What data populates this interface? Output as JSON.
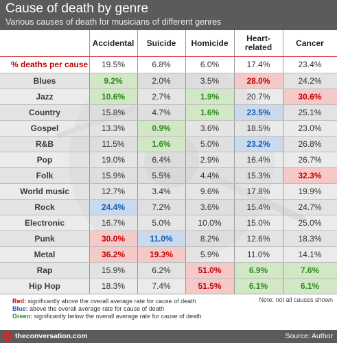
{
  "header": {
    "title": "Cause of death by genre",
    "subtitle": "Various causes of death for musicians of different genres"
  },
  "chart_data": {
    "type": "table",
    "title": "Cause of death by genre",
    "subtitle": "Various causes of death for musicians of different genres",
    "columns": [
      "Accidental",
      "Suicide",
      "Homicide",
      "Heart-\nrelated",
      "Cancer"
    ],
    "overall": {
      "label": "% deaths per cause",
      "values": [
        "19.5%",
        "6.8%",
        "6.0%",
        "17.4%",
        "23.4%"
      ]
    },
    "rows": [
      {
        "genre": "Blues",
        "values": [
          "9.2%",
          "2.0%",
          "3.5%",
          "28.0%",
          "24.2%"
        ],
        "highlight": [
          "green",
          "",
          "",
          "red",
          ""
        ]
      },
      {
        "genre": "Jazz",
        "values": [
          "10.6%",
          "2.7%",
          "1.9%",
          "20.7%",
          "30.6%"
        ],
        "highlight": [
          "green",
          "",
          "green",
          "",
          "red"
        ]
      },
      {
        "genre": "Country",
        "values": [
          "15.8%",
          "4.7%",
          "1.6%",
          "23.5%",
          "25.1%"
        ],
        "highlight": [
          "",
          "",
          "green",
          "blue",
          ""
        ]
      },
      {
        "genre": "Gospel",
        "values": [
          "13.3%",
          "0.9%",
          "3.6%",
          "18.5%",
          "23.0%"
        ],
        "highlight": [
          "",
          "green",
          "",
          "",
          ""
        ]
      },
      {
        "genre": "R&B",
        "values": [
          "11.5%",
          "1.6%",
          "5.0%",
          "23.2%",
          "26.8%"
        ],
        "highlight": [
          "",
          "green",
          "",
          "blue",
          ""
        ]
      },
      {
        "genre": "Pop",
        "values": [
          "19.0%",
          "6.4%",
          "2.9%",
          "16.4%",
          "26.7%"
        ],
        "highlight": [
          "",
          "",
          "",
          "",
          ""
        ]
      },
      {
        "genre": "Folk",
        "values": [
          "15.9%",
          "5.5%",
          "4.4%",
          "15.3%",
          "32.3%"
        ],
        "highlight": [
          "",
          "",
          "",
          "",
          "red"
        ]
      },
      {
        "genre": "World music",
        "values": [
          "12.7%",
          "3.4%",
          "9.6%",
          "17.8%",
          "19.9%"
        ],
        "highlight": [
          "",
          "",
          "",
          "",
          ""
        ]
      },
      {
        "genre": "Rock",
        "values": [
          "24.4%",
          "7.2%",
          "3.6%",
          "15.4%",
          "24.7%"
        ],
        "highlight": [
          "blue",
          "",
          "",
          "",
          ""
        ]
      },
      {
        "genre": "Electronic",
        "values": [
          "16.7%",
          "5.0%",
          "10.0%",
          "15.0%",
          "25.0%"
        ],
        "highlight": [
          "",
          "",
          "",
          "",
          ""
        ]
      },
      {
        "genre": "Punk",
        "values": [
          "30.0%",
          "11.0%",
          "8.2%",
          "12.6%",
          "18.3%"
        ],
        "highlight": [
          "red",
          "blue",
          "",
          "",
          ""
        ]
      },
      {
        "genre": "Metal",
        "values": [
          "36.2%",
          "19.3%",
          "5.9%",
          "11.0%",
          "14.1%"
        ],
        "highlight": [
          "red",
          "red",
          "",
          "",
          ""
        ]
      },
      {
        "genre": "Rap",
        "values": [
          "15.9%",
          "6.2%",
          "51.0%",
          "6.9%",
          "7.6%"
        ],
        "highlight": [
          "",
          "",
          "red",
          "green",
          "green"
        ]
      },
      {
        "genre": "Hip Hop",
        "values": [
          "18.3%",
          "7.4%",
          "51.5%",
          "6.1%",
          "6.1%"
        ],
        "highlight": [
          "",
          "",
          "red",
          "green",
          "green"
        ]
      }
    ],
    "colors": {
      "red": "#c00000",
      "blue": "#1a5aa6",
      "green": "#2f8a1e"
    }
  },
  "legend": [
    {
      "key": "Red:",
      "text": " significantly above the overall average rate for cause of death",
      "color": "#c00000"
    },
    {
      "key": "Blue:",
      "text": " above the overall average rate for cause of death",
      "color": "#1a5aa6"
    },
    {
      "key": "Green:",
      "text": " significantly below the overall average rate for cause of death",
      "color": "#2f8a1e"
    }
  ],
  "note": "Note: not all causes shown",
  "footer": {
    "site": "theconversation.com",
    "source": "Source: Author",
    "logo_icon": "conversation-logo-icon"
  }
}
